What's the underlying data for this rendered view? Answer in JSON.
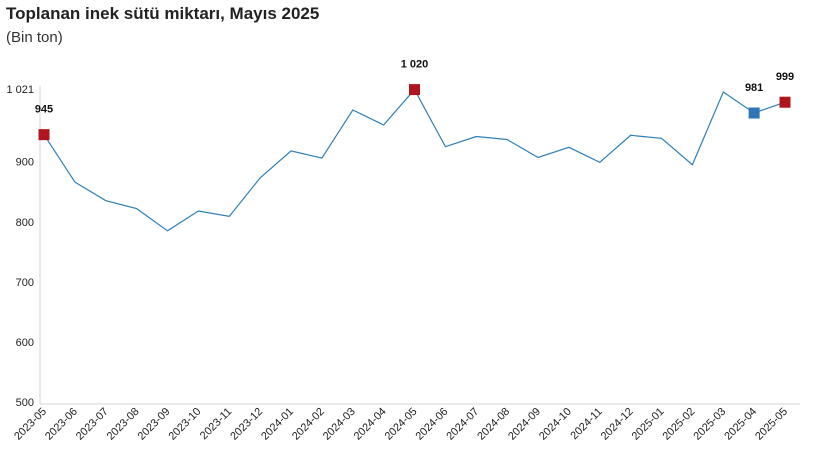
{
  "chart_data": {
    "type": "line",
    "title": "Toplanan inek sütü miktarı, Mayıs 2025",
    "subtitle": "(Bin ton)",
    "xlabel": "",
    "ylabel": "",
    "x": [
      "2023-05",
      "2023-06",
      "2023-07",
      "2023-08",
      "2023-09",
      "2023-10",
      "2023-11",
      "2023-12",
      "2024-01",
      "2024-02",
      "2024-03",
      "2024-04",
      "2024-05",
      "2024-06",
      "2024-07",
      "2024-08",
      "2024-09",
      "2024-10",
      "2024-11",
      "2024-12",
      "2025-01",
      "2025-02",
      "2025-03",
      "2025-04",
      "2025-05"
    ],
    "values": [
      945,
      866,
      835,
      822,
      785,
      818,
      809,
      873,
      918,
      906,
      986,
      961,
      1020,
      925,
      942,
      937,
      907,
      924,
      899,
      944,
      939,
      895,
      1016,
      981,
      999
    ],
    "ylim": [
      500,
      1021
    ],
    "yticks": [
      500,
      600,
      700,
      800,
      900,
      1021
    ],
    "ytick_labels": [
      "500",
      "600",
      "700",
      "800",
      "900",
      "1 021"
    ],
    "grid": false,
    "line_color": "#2e7fb8",
    "highlights": [
      {
        "index": 0,
        "label": "945",
        "color": "#b0151e"
      },
      {
        "index": 12,
        "label": "1 020",
        "color": "#b0151e"
      },
      {
        "index": 23,
        "label": "981",
        "color": "#2e75b6"
      },
      {
        "index": 24,
        "label": "999",
        "color": "#b0151e"
      }
    ]
  }
}
